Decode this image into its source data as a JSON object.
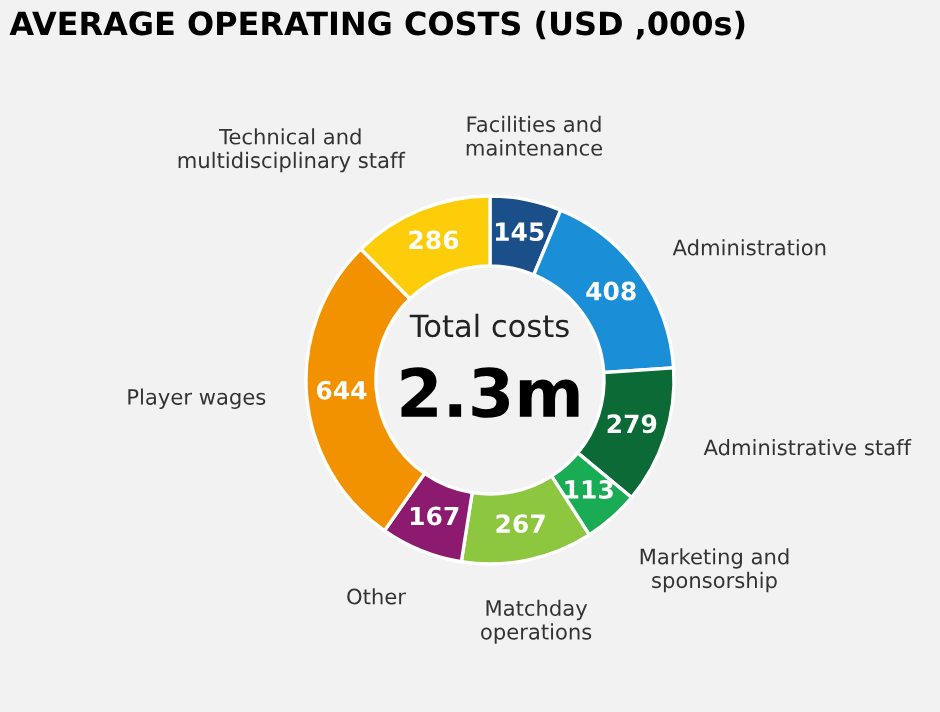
{
  "chart_data": {
    "type": "donut",
    "title": "AVERAGE OPERATING COSTS (USD ,000s)",
    "categories": [
      "Facilities and\nmaintenance",
      "Administration",
      "Administrative staff",
      "Marketing and\nsponsorship",
      "Matchday\noperations",
      "Other",
      "Player wages",
      "Technical and\nmultidisciplinary staff"
    ],
    "values": [
      145,
      408,
      279,
      113,
      267,
      167,
      644,
      286
    ],
    "colors": [
      "#1a4f8a",
      "#1a8fd8",
      "#0b6a35",
      "#1aab55",
      "#8dc63f",
      "#8c1a6e",
      "#f39200",
      "#fdcd0a"
    ],
    "data_labels": true,
    "annotations": [
      "Total costs",
      "2.3m"
    ]
  }
}
